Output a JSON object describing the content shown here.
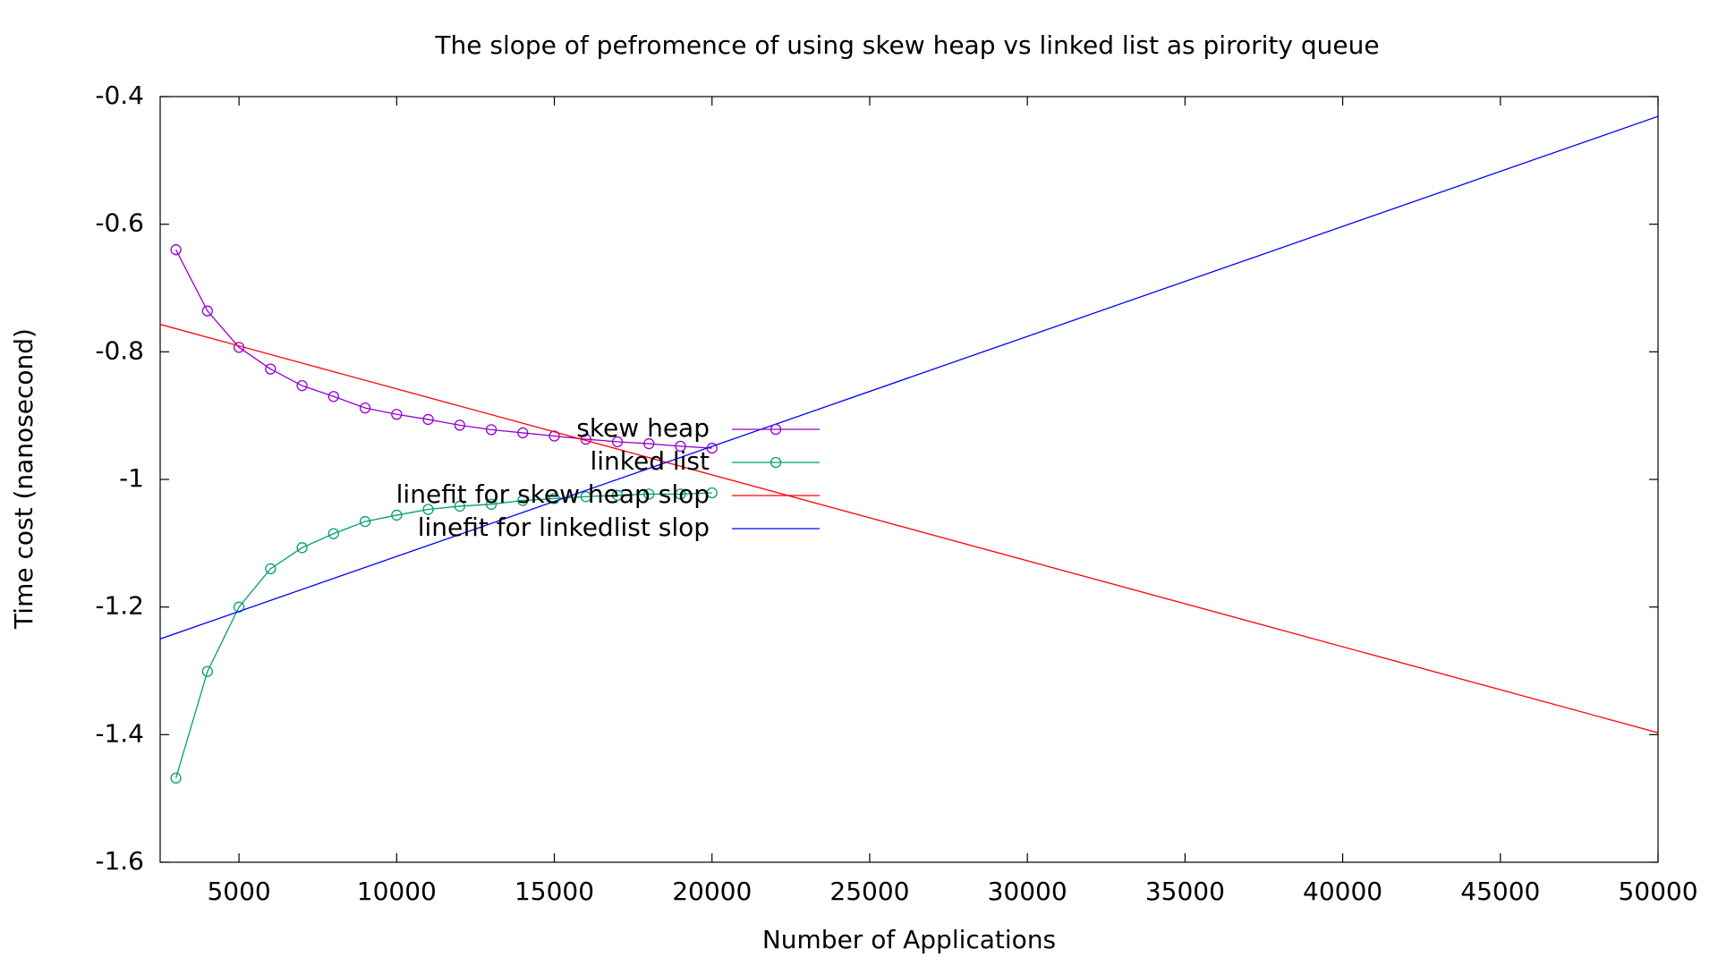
{
  "chart_data": {
    "type": "line",
    "title": "The slope of pefromence of using skew heap vs linked list as pirority queue",
    "x_label": "Number of Applications",
    "y_label": "Time cost (nanosecond)",
    "xlim": [
      2500,
      50000
    ],
    "ylim": [
      -1.6,
      -0.4
    ],
    "xticks": [
      5000,
      10000,
      15000,
      20000,
      25000,
      30000,
      35000,
      40000,
      45000,
      50000
    ],
    "yticks": [
      -1.6,
      -1.4,
      -1.2,
      -1,
      -0.8,
      -0.6,
      -0.4
    ],
    "legend": "center",
    "series": [
      {
        "name": "skew heap",
        "color": "#9400d3",
        "marker": "circle",
        "x": [
          3000,
          4000,
          5000,
          6000,
          7000,
          8000,
          9000,
          10000,
          11000,
          12000,
          13000,
          14000,
          15000,
          16000,
          17000,
          18000,
          19000,
          20000
        ],
        "values": [
          -0.64,
          -0.736,
          -0.793,
          -0.827,
          -0.853,
          -0.87,
          -0.888,
          -0.898,
          -0.906,
          -0.915,
          -0.922,
          -0.927,
          -0.932,
          -0.937,
          -0.941,
          -0.944,
          -0.948,
          -0.951
        ]
      },
      {
        "name": "linked list",
        "color": "#009e73",
        "marker": "circle",
        "x": [
          3000,
          4000,
          5000,
          6000,
          7000,
          8000,
          9000,
          10000,
          11000,
          12000,
          13000,
          14000,
          15000,
          16000,
          17000,
          18000,
          19000,
          20000
        ],
        "values": [
          -1.468,
          -1.301,
          -1.2,
          -1.14,
          -1.107,
          -1.085,
          -1.066,
          -1.056,
          -1.047,
          -1.042,
          -1.039,
          -1.033,
          -1.03,
          -1.027,
          -1.025,
          -1.023,
          -1.023,
          -1.021
        ]
      },
      {
        "name": "linefit for skew heap slop",
        "color": "#ff0000",
        "x": [
          2500,
          50000
        ],
        "values": [
          -0.757,
          -1.397
        ]
      },
      {
        "name": "linefit for linkedlist slop",
        "color": "#0000ff",
        "x": [
          2500,
          50000
        ],
        "values": [
          -1.25,
          -0.431
        ]
      }
    ]
  }
}
